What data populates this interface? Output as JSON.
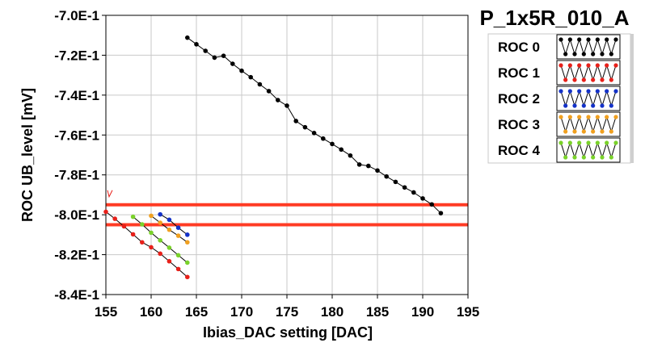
{
  "chart_data": {
    "type": "scatter",
    "title": "P_1x5R_010_A",
    "xlabel": "Ibias_DAC setting [DAC]",
    "ylabel": "ROC UB_level [mV]",
    "xlim": [
      155,
      195
    ],
    "ylim": [
      -0.84,
      -0.7
    ],
    "x_ticks": [
      "155",
      "160",
      "165",
      "170",
      "175",
      "180",
      "185",
      "190",
      "195"
    ],
    "y_ticks": [
      "-7.0E-1",
      "-7.2E-1",
      "-7.4E-1",
      "-7.6E-1",
      "-7.8E-1",
      "-8.0E-1",
      "-8.2E-1",
      "-8.4E-1"
    ],
    "grid": true,
    "legend_position": "top-right",
    "reference_lines": [
      {
        "y": -0.795,
        "color": "#ff3b24"
      },
      {
        "y": -0.805,
        "color": "#ff3b24"
      }
    ],
    "series": [
      {
        "name": "ROC 0",
        "color": "#000000",
        "x": [
          164,
          165,
          166,
          167,
          168,
          169,
          170,
          171,
          172,
          173,
          174,
          175,
          176,
          177,
          178,
          179,
          180,
          181,
          182,
          183,
          184,
          185,
          186,
          187,
          188,
          189,
          190,
          191,
          192
        ],
        "y": [
          -0.7112,
          -0.7145,
          -0.7178,
          -0.7212,
          -0.7203,
          -0.7243,
          -0.7278,
          -0.731,
          -0.7346,
          -0.738,
          -0.7425,
          -0.7453,
          -0.753,
          -0.7561,
          -0.759,
          -0.7618,
          -0.7645,
          -0.7673,
          -0.7703,
          -0.7748,
          -0.7755,
          -0.7778,
          -0.7808,
          -0.7835,
          -0.7863,
          -0.7888,
          -0.7918,
          -0.7948,
          -0.7992
        ]
      },
      {
        "name": "ROC 1",
        "color": "#e8201a",
        "x": [
          155,
          156,
          157,
          158,
          159,
          160,
          161,
          162,
          163,
          164
        ],
        "y": [
          -0.7985,
          -0.802,
          -0.8058,
          -0.8098,
          -0.8138,
          -0.8163,
          -0.8195,
          -0.8233,
          -0.8272,
          -0.8312
        ]
      },
      {
        "name": "ROC 2",
        "color": "#1432c8",
        "x": [
          161,
          162,
          163,
          164
        ],
        "y": [
          -0.7998,
          -0.8025,
          -0.8065,
          -0.81
        ]
      },
      {
        "name": "ROC 3",
        "color": "#f0a020",
        "x": [
          160,
          161,
          162,
          163,
          164
        ],
        "y": [
          -0.8005,
          -0.804,
          -0.8075,
          -0.8105,
          -0.8138
        ]
      },
      {
        "name": "ROC 4",
        "color": "#7ad22a",
        "x": [
          158,
          159,
          160,
          161,
          162,
          163,
          164
        ],
        "y": [
          -0.801,
          -0.8048,
          -0.809,
          -0.8128,
          -0.8165,
          -0.8203,
          -0.824
        ]
      }
    ]
  }
}
